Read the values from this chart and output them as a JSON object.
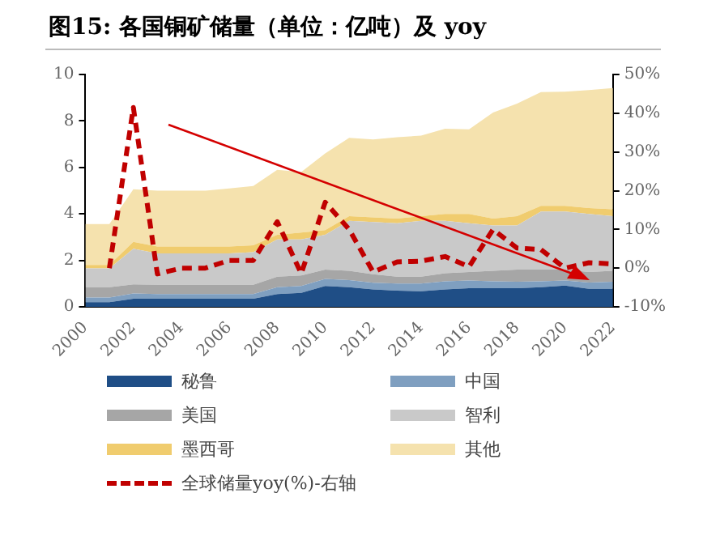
{
  "chart_data": {
    "type": "area",
    "title": "图15: 各国铜矿储量（单位：亿吨）及 yoy",
    "categories": [
      "2000",
      null,
      "2002",
      null,
      "2004",
      null,
      "2006",
      null,
      "2008",
      null,
      "2010",
      null,
      "2012",
      null,
      "2014",
      null,
      "2016",
      null,
      "2018",
      null,
      "2020",
      null,
      "2022"
    ],
    "stacked": true,
    "legend": "bottom",
    "marker": "none",
    "grid": false,
    "ylim": [
      0,
      10
    ],
    "yticks": [
      0,
      2,
      4,
      6,
      8,
      10
    ],
    "y2lim": [
      -10,
      50
    ],
    "y2ticks": [
      {
        "value": -10,
        "label": "-10%"
      },
      {
        "value": 0,
        "label": "0%"
      },
      {
        "value": 10,
        "label": "10%"
      },
      {
        "value": 20,
        "label": "20%"
      },
      {
        "value": 30,
        "label": "30%"
      },
      {
        "value": 40,
        "label": "40%"
      },
      {
        "value": 50,
        "label": "50%"
      }
    ],
    "series": [
      {
        "name": "秘鲁",
        "type": "area",
        "color": "#1f4e86",
        "values": [
          0.2,
          0.2,
          0.35,
          0.35,
          0.35,
          0.35,
          0.35,
          0.35,
          0.55,
          0.6,
          0.9,
          0.85,
          0.75,
          0.7,
          0.67,
          0.75,
          0.8,
          0.8,
          0.8,
          0.85,
          0.92,
          0.78,
          0.78
        ]
      },
      {
        "name": "中国",
        "type": "area",
        "color": "#7f9fc0",
        "values": [
          0.2,
          0.2,
          0.23,
          0.2,
          0.2,
          0.2,
          0.2,
          0.2,
          0.3,
          0.3,
          0.3,
          0.3,
          0.29,
          0.3,
          0.33,
          0.35,
          0.33,
          0.3,
          0.28,
          0.25,
          0.21,
          0.27,
          0.3
        ]
      },
      {
        "name": "美国",
        "type": "area",
        "color": "#a6a6a6",
        "values": [
          0.45,
          0.45,
          0.39,
          0.4,
          0.4,
          0.4,
          0.4,
          0.4,
          0.45,
          0.45,
          0.4,
          0.4,
          0.36,
          0.3,
          0.3,
          0.35,
          0.37,
          0.45,
          0.52,
          0.5,
          0.47,
          0.45,
          0.47
        ]
      },
      {
        "name": "智利",
        "type": "area",
        "color": "#c9c9c9",
        "values": [
          0.81,
          0.81,
          1.53,
          1.35,
          1.35,
          1.35,
          1.35,
          1.4,
          1.6,
          1.55,
          1.5,
          2.15,
          2.25,
          2.3,
          2.4,
          2.25,
          2.1,
          1.95,
          1.9,
          2.5,
          2.5,
          2.5,
          2.35
        ]
      },
      {
        "name": "墨西哥",
        "type": "area",
        "color": "#f0cc6e",
        "values": [
          0.14,
          0.14,
          0.3,
          0.3,
          0.3,
          0.3,
          0.3,
          0.3,
          0.2,
          0.3,
          0.2,
          0.2,
          0.2,
          0.2,
          0.2,
          0.3,
          0.4,
          0.3,
          0.4,
          0.25,
          0.25,
          0.25,
          0.3
        ]
      },
      {
        "name": "其他",
        "type": "area",
        "color": "#f5e2ae",
        "values": [
          1.76,
          1.76,
          2.26,
          2.4,
          2.4,
          2.4,
          2.5,
          2.55,
          2.8,
          2.6,
          3.3,
          3.37,
          3.35,
          3.5,
          3.47,
          3.67,
          3.64,
          4.56,
          4.85,
          4.89,
          4.91,
          5.08,
          5.22
        ]
      },
      {
        "name": "全球储量yoy(%)-右轴",
        "type": "line",
        "axis": "y2",
        "line_style": "dashed",
        "color": "#c00000",
        "values": [
          null,
          0,
          41.5,
          -1.5,
          0,
          0,
          2,
          2,
          12,
          -1.4,
          17,
          10,
          -1,
          1.6,
          1.8,
          3,
          0.4,
          10,
          5.2,
          4.8,
          0,
          1.4,
          1.1
        ]
      }
    ]
  }
}
